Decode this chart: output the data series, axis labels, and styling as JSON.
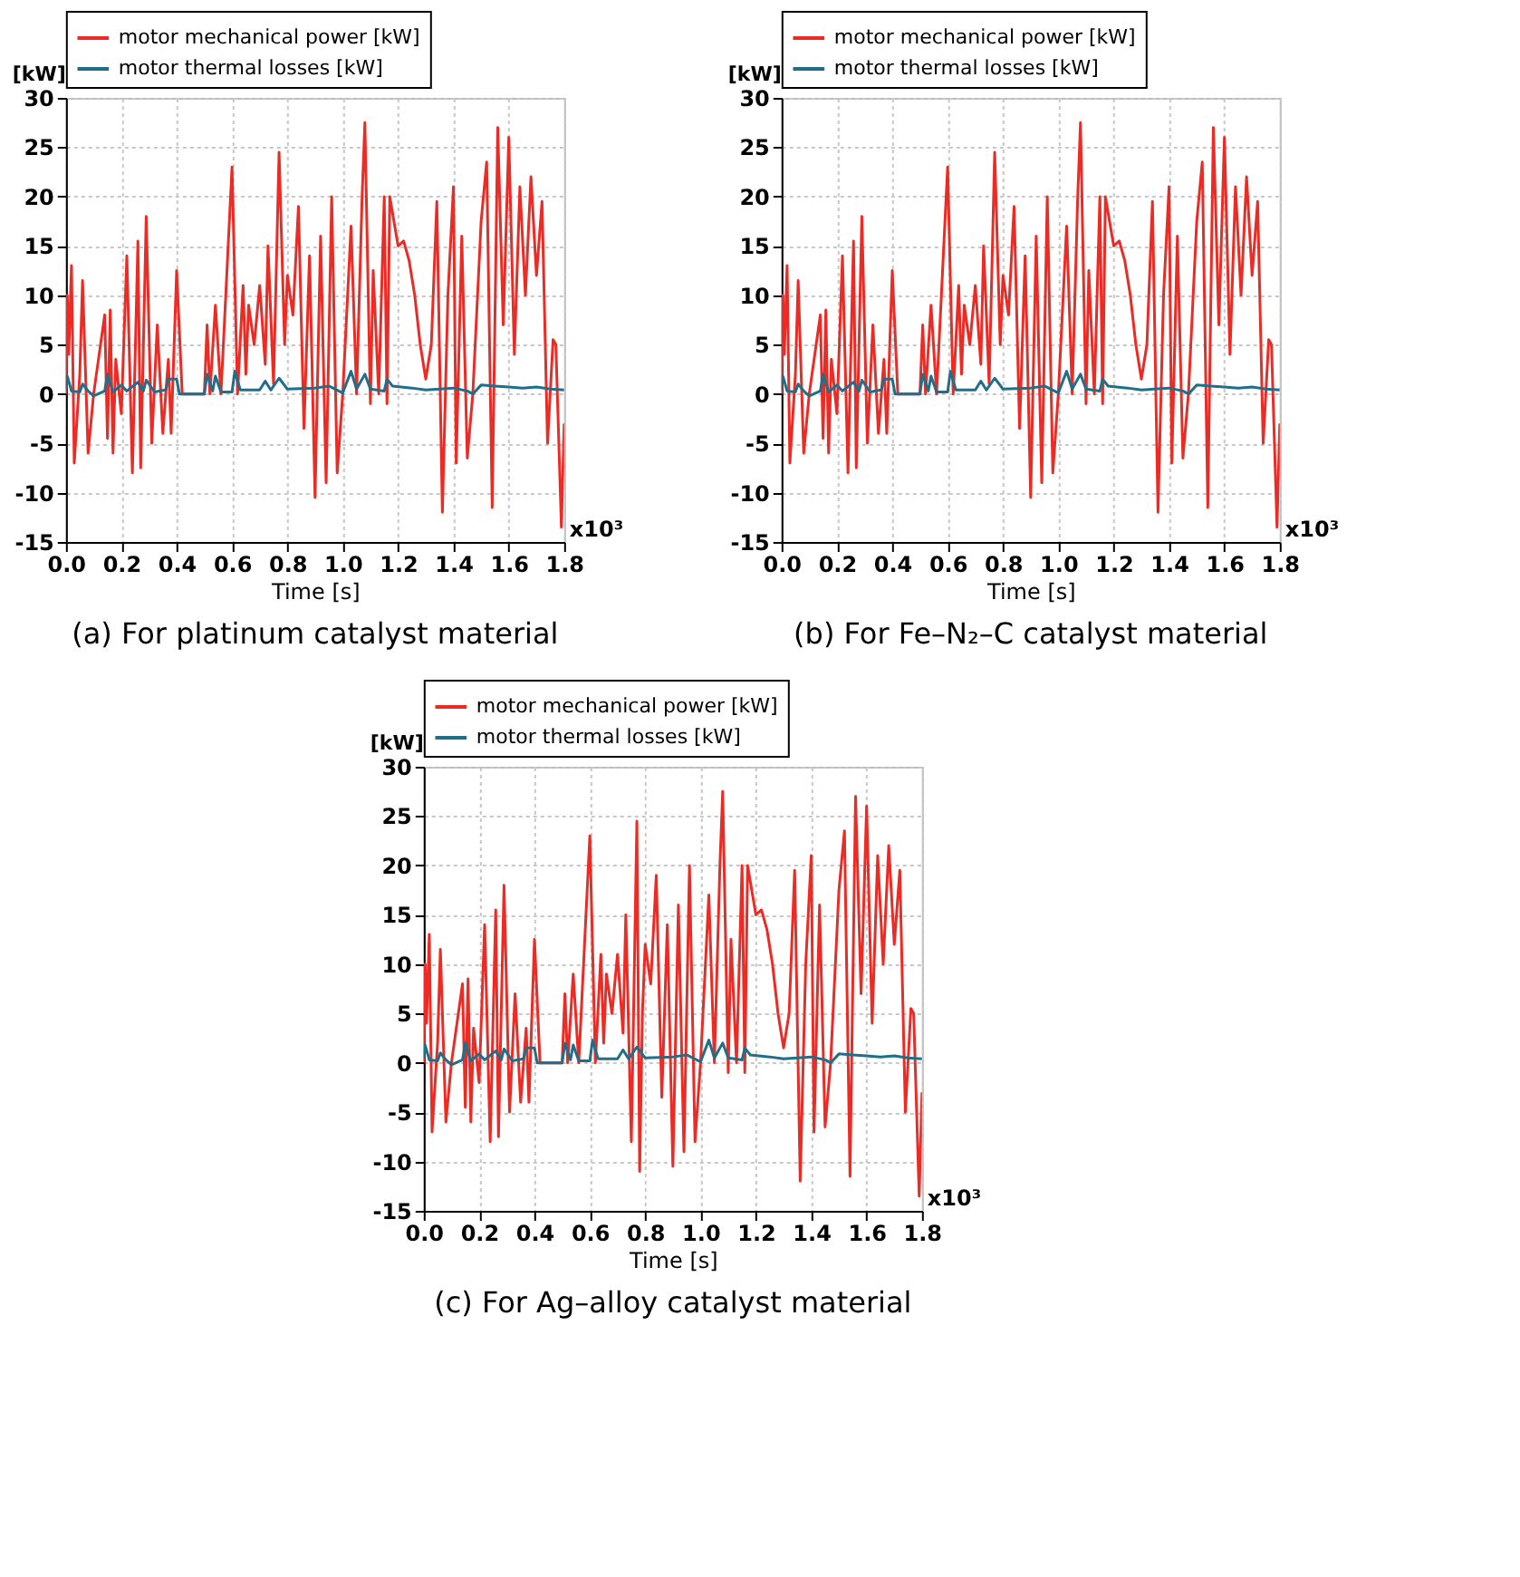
{
  "chart_data": [
    {
      "type": "line",
      "title": "(a) For platinum catalyst material",
      "xlabel": "Time [s]",
      "ylabel": "[kW]",
      "annotations": [
        "x10³"
      ],
      "legend": "top",
      "grid": true,
      "xlim": [
        0,
        1.8
      ],
      "xticks": [
        {
          "value": 0,
          "label": "0.0"
        },
        {
          "value": 0.2,
          "label": "0.2"
        },
        {
          "value": 0.4,
          "label": "0.4"
        },
        {
          "value": 0.6,
          "label": "0.6"
        },
        {
          "value": 0.8,
          "label": "0.8"
        },
        {
          "value": 1,
          "label": "1.0"
        },
        {
          "value": 1.2,
          "label": "1.2"
        },
        {
          "value": 1.4,
          "label": "1.4"
        },
        {
          "value": 1.6,
          "label": "1.6"
        },
        {
          "value": 1.8,
          "label": "1.8"
        }
      ],
      "ylim": [
        -15,
        30
      ],
      "yticks": [
        -15,
        -10,
        -5,
        0,
        5,
        10,
        15,
        20,
        25,
        30
      ],
      "series": [
        {
          "name": "motor mechanical power [kW]",
          "color": "#ee2a24",
          "x": [
            0,
            0.005,
            0.01,
            0.02,
            0.03,
            0.05,
            0.06,
            0.08,
            0.1,
            0.14,
            0.15,
            0.16,
            0.17,
            0.18,
            0.2,
            0.22,
            0.24,
            0.26,
            0.27,
            0.29,
            0.31,
            0.33,
            0.35,
            0.37,
            0.38,
            0.4,
            0.42,
            0.5,
            0.51,
            0.52,
            0.54,
            0.56,
            0.6,
            0.62,
            0.64,
            0.65,
            0.66,
            0.68,
            0.7,
            0.72,
            0.73,
            0.75,
            0.77,
            0.79,
            0.8,
            0.82,
            0.84,
            0.86,
            0.88,
            0.9,
            0.92,
            0.94,
            0.96,
            0.98,
            1,
            1.03,
            1.05,
            1.07,
            1.08,
            1.1,
            1.11,
            1.13,
            1.15,
            1.16,
            1.17,
            1.2,
            1.22,
            1.24,
            1.26,
            1.28,
            1.3,
            1.32,
            1.34,
            1.36,
            1.38,
            1.4,
            1.41,
            1.43,
            1.45,
            1.47,
            1.5,
            1.52,
            1.54,
            1.56,
            1.58,
            1.6,
            1.62,
            1.64,
            1.66,
            1.68,
            1.7,
            1.72,
            1.74,
            1.76,
            1.77,
            1.79,
            1.8
          ],
          "values": [
            0,
            10,
            4,
            13,
            -7,
            2,
            11.5,
            -6,
            0,
            8,
            -4.5,
            8.5,
            -6,
            3.5,
            -2,
            14,
            -8,
            15.5,
            -7.5,
            18,
            -5,
            7,
            -4,
            3.5,
            -4,
            12.5,
            0,
            0,
            7,
            0,
            9,
            0,
            23,
            0,
            11,
            2,
            9,
            5,
            11,
            3,
            15,
            1,
            24.5,
            5,
            12,
            8,
            19,
            -3.5,
            14,
            -10.5,
            16,
            -9,
            20,
            -8,
            0,
            17,
            0,
            20,
            27.5,
            -1,
            12.5,
            0,
            20,
            -1,
            20,
            15,
            15.5,
            13.5,
            10,
            5,
            1.5,
            5,
            19.5,
            -12,
            10,
            21,
            -7,
            16,
            -6.5,
            0,
            17.5,
            23.5,
            -11.5,
            27,
            7,
            26,
            4,
            21,
            10,
            22,
            12,
            19.5,
            -5,
            5.5,
            5,
            -13.5,
            -3
          ]
        },
        {
          "name": "motor thermal losses [kW]",
          "color": "#1f6f8b",
          "x": [
            0,
            0.005,
            0.02,
            0.05,
            0.06,
            0.08,
            0.1,
            0.14,
            0.15,
            0.17,
            0.2,
            0.22,
            0.26,
            0.28,
            0.29,
            0.32,
            0.36,
            0.37,
            0.4,
            0.41,
            0.5,
            0.51,
            0.53,
            0.54,
            0.56,
            0.6,
            0.61,
            0.63,
            0.7,
            0.72,
            0.74,
            0.77,
            0.8,
            0.9,
            0.95,
            1,
            1.03,
            1.05,
            1.08,
            1.1,
            1.15,
            1.16,
            1.18,
            1.25,
            1.3,
            1.4,
            1.45,
            1.47,
            1.5,
            1.55,
            1.6,
            1.65,
            1.7,
            1.75,
            1.8
          ],
          "values": [
            0.5,
            1.8,
            0.3,
            0.2,
            1,
            0.3,
            -0.2,
            0.3,
            2,
            0.2,
            0.9,
            0.3,
            1.2,
            0.3,
            1.4,
            0.2,
            0.4,
            1.5,
            1.5,
            0,
            0,
            2,
            0.3,
            1.8,
            0.2,
            0.2,
            2.3,
            0.4,
            0.4,
            1.3,
            0.4,
            1.6,
            0.5,
            0.6,
            0.8,
            0.1,
            2.3,
            0.5,
            2,
            0.5,
            0.3,
            1.5,
            0.8,
            0.6,
            0.4,
            0.6,
            0.3,
            0,
            0.9,
            0.8,
            0.7,
            0.6,
            0.7,
            0.5,
            0.4
          ]
        }
      ]
    },
    {
      "type": "line",
      "title": "(b) For Fe–N₂–C catalyst material",
      "xlabel": "Time [s]",
      "ylabel": "[kW]",
      "annotations": [
        "x10³"
      ],
      "legend": "top",
      "grid": true,
      "xlim": [
        0,
        1.8
      ],
      "xticks": [
        {
          "value": 0,
          "label": "0.0"
        },
        {
          "value": 0.2,
          "label": "0.2"
        },
        {
          "value": 0.4,
          "label": "0.4"
        },
        {
          "value": 0.6,
          "label": "0.6"
        },
        {
          "value": 0.8,
          "label": "0.8"
        },
        {
          "value": 1,
          "label": "1.0"
        },
        {
          "value": 1.2,
          "label": "1.2"
        },
        {
          "value": 1.4,
          "label": "1.4"
        },
        {
          "value": 1.6,
          "label": "1.6"
        },
        {
          "value": 1.8,
          "label": "1.8"
        }
      ],
      "ylim": [
        -15,
        30
      ],
      "yticks": [
        -15,
        -10,
        -5,
        0,
        5,
        10,
        15,
        20,
        25,
        30
      ],
      "series": [
        {
          "name": "motor mechanical power [kW]",
          "color": "#ee2a24",
          "x": [
            0,
            0.005,
            0.01,
            0.02,
            0.03,
            0.05,
            0.06,
            0.08,
            0.1,
            0.14,
            0.15,
            0.16,
            0.17,
            0.18,
            0.2,
            0.22,
            0.24,
            0.26,
            0.27,
            0.29,
            0.31,
            0.33,
            0.35,
            0.37,
            0.38,
            0.4,
            0.42,
            0.5,
            0.51,
            0.52,
            0.54,
            0.56,
            0.6,
            0.62,
            0.64,
            0.65,
            0.66,
            0.68,
            0.7,
            0.72,
            0.73,
            0.75,
            0.77,
            0.79,
            0.8,
            0.82,
            0.84,
            0.86,
            0.88,
            0.9,
            0.92,
            0.94,
            0.96,
            0.98,
            1,
            1.03,
            1.05,
            1.07,
            1.08,
            1.1,
            1.11,
            1.13,
            1.15,
            1.16,
            1.17,
            1.2,
            1.22,
            1.24,
            1.26,
            1.28,
            1.3,
            1.32,
            1.34,
            1.36,
            1.38,
            1.4,
            1.41,
            1.43,
            1.45,
            1.47,
            1.5,
            1.52,
            1.54,
            1.56,
            1.58,
            1.6,
            1.62,
            1.64,
            1.66,
            1.68,
            1.7,
            1.72,
            1.74,
            1.76,
            1.77,
            1.79,
            1.8
          ],
          "values": [
            0,
            10,
            4,
            13,
            -7,
            2,
            11.5,
            -6,
            0,
            8,
            -4.5,
            8.5,
            -6,
            3.5,
            -2,
            14,
            -8,
            15.5,
            -7.5,
            18,
            -5,
            7,
            -4,
            3.5,
            -4,
            12.5,
            0,
            0,
            7,
            0,
            9,
            0,
            23,
            0,
            11,
            2,
            9,
            5,
            11,
            3,
            15,
            1,
            24.5,
            5,
            12,
            8,
            19,
            -3.5,
            14,
            -10.5,
            16,
            -9,
            20,
            -8,
            0,
            17,
            0,
            20,
            27.5,
            -1,
            12.5,
            0,
            20,
            -1,
            20,
            15,
            15.5,
            13.5,
            10,
            5,
            1.5,
            5,
            19.5,
            -12,
            10,
            21,
            -7,
            16,
            -6.5,
            0,
            17.5,
            23.5,
            -11.5,
            27,
            7,
            26,
            4,
            21,
            10,
            22,
            12,
            19.5,
            -5,
            5.5,
            5,
            -13.5,
            -3
          ]
        },
        {
          "name": "motor thermal losses [kW]",
          "color": "#1f6f8b",
          "x": [
            0,
            0.005,
            0.02,
            0.05,
            0.06,
            0.08,
            0.1,
            0.14,
            0.15,
            0.17,
            0.2,
            0.22,
            0.26,
            0.28,
            0.29,
            0.32,
            0.36,
            0.37,
            0.4,
            0.41,
            0.5,
            0.51,
            0.53,
            0.54,
            0.56,
            0.6,
            0.61,
            0.63,
            0.7,
            0.72,
            0.74,
            0.77,
            0.8,
            0.9,
            0.95,
            1,
            1.03,
            1.05,
            1.08,
            1.1,
            1.15,
            1.16,
            1.18,
            1.25,
            1.3,
            1.4,
            1.45,
            1.47,
            1.5,
            1.55,
            1.6,
            1.65,
            1.7,
            1.75,
            1.8
          ],
          "values": [
            0.5,
            1.8,
            0.3,
            0.2,
            1,
            0.3,
            -0.2,
            0.3,
            2,
            0.2,
            0.9,
            0.3,
            1.2,
            0.3,
            1.4,
            0.2,
            0.4,
            1.5,
            1.5,
            0,
            0,
            2,
            0.3,
            1.8,
            0.2,
            0.2,
            2.3,
            0.4,
            0.4,
            1.3,
            0.4,
            1.6,
            0.5,
            0.6,
            0.8,
            0.1,
            2.3,
            0.5,
            2,
            0.5,
            0.3,
            1.5,
            0.8,
            0.6,
            0.4,
            0.6,
            0.3,
            0,
            0.9,
            0.8,
            0.7,
            0.6,
            0.7,
            0.5,
            0.4
          ]
        }
      ]
    },
    {
      "type": "line",
      "title": "(c) For Ag–alloy catalyst material",
      "xlabel": "Time [s]",
      "ylabel": "[kW]",
      "annotations": [
        "x10³"
      ],
      "legend": "top",
      "grid": true,
      "xlim": [
        0,
        1.8
      ],
      "xticks": [
        {
          "value": 0,
          "label": "0.0"
        },
        {
          "value": 0.2,
          "label": "0.2"
        },
        {
          "value": 0.4,
          "label": "0.4"
        },
        {
          "value": 0.6,
          "label": "0.6"
        },
        {
          "value": 0.8,
          "label": "0.8"
        },
        {
          "value": 1,
          "label": "1.0"
        },
        {
          "value": 1.2,
          "label": "1.2"
        },
        {
          "value": 1.4,
          "label": "1.4"
        },
        {
          "value": 1.6,
          "label": "1.6"
        },
        {
          "value": 1.8,
          "label": "1.8"
        }
      ],
      "ylim": [
        -15,
        30
      ],
      "yticks": [
        -15,
        -10,
        -5,
        0,
        5,
        10,
        15,
        20,
        25,
        30
      ],
      "series": [
        {
          "name": "motor mechanical power [kW]",
          "color": "#ee2a24",
          "x": [
            0,
            0.005,
            0.01,
            0.02,
            0.03,
            0.05,
            0.06,
            0.08,
            0.1,
            0.14,
            0.15,
            0.16,
            0.17,
            0.18,
            0.2,
            0.22,
            0.24,
            0.26,
            0.27,
            0.29,
            0.31,
            0.33,
            0.35,
            0.37,
            0.38,
            0.4,
            0.42,
            0.5,
            0.51,
            0.52,
            0.54,
            0.56,
            0.6,
            0.62,
            0.64,
            0.65,
            0.66,
            0.68,
            0.7,
            0.72,
            0.73,
            0.75,
            0.77,
            0.78,
            0.79,
            0.8,
            0.82,
            0.84,
            0.86,
            0.88,
            0.9,
            0.92,
            0.94,
            0.96,
            0.98,
            1,
            1.03,
            1.05,
            1.07,
            1.08,
            1.1,
            1.11,
            1.13,
            1.15,
            1.16,
            1.17,
            1.2,
            1.22,
            1.24,
            1.26,
            1.28,
            1.3,
            1.32,
            1.34,
            1.36,
            1.38,
            1.4,
            1.41,
            1.43,
            1.45,
            1.47,
            1.5,
            1.52,
            1.54,
            1.56,
            1.58,
            1.6,
            1.62,
            1.64,
            1.66,
            1.68,
            1.7,
            1.72,
            1.74,
            1.76,
            1.77,
            1.79,
            1.8
          ],
          "values": [
            0,
            10,
            4,
            13,
            -7,
            2,
            11.5,
            -6,
            0,
            8,
            -4.5,
            8.5,
            -6,
            3.5,
            -2,
            14,
            -8,
            15.5,
            -7.5,
            18,
            -5,
            7,
            -4,
            3.5,
            -4,
            12.5,
            0,
            0,
            7,
            0,
            9,
            0,
            23,
            0,
            11,
            2,
            9,
            5,
            11,
            3,
            15,
            -8,
            24.5,
            -11,
            5,
            12,
            8,
            19,
            -3.5,
            14,
            -10.5,
            16,
            -9,
            20,
            -8,
            0,
            17,
            0,
            20,
            27.5,
            -1,
            12.5,
            0,
            20,
            -1,
            20,
            15,
            15.5,
            13.5,
            10,
            5,
            1.5,
            5,
            19.5,
            -12,
            10,
            21,
            -7,
            16,
            -6.5,
            0,
            17.5,
            23.5,
            -11.5,
            27,
            7,
            26,
            4,
            21,
            10,
            22,
            12,
            19.5,
            -5,
            5.5,
            5,
            -13.5,
            -3
          ]
        },
        {
          "name": "motor thermal losses [kW]",
          "color": "#1f6f8b",
          "x": [
            0,
            0.005,
            0.02,
            0.05,
            0.06,
            0.08,
            0.1,
            0.14,
            0.15,
            0.17,
            0.2,
            0.22,
            0.26,
            0.28,
            0.29,
            0.32,
            0.36,
            0.37,
            0.4,
            0.41,
            0.5,
            0.51,
            0.53,
            0.54,
            0.56,
            0.6,
            0.61,
            0.63,
            0.7,
            0.72,
            0.74,
            0.77,
            0.8,
            0.9,
            0.95,
            1,
            1.03,
            1.05,
            1.08,
            1.1,
            1.15,
            1.16,
            1.18,
            1.25,
            1.3,
            1.4,
            1.45,
            1.47,
            1.5,
            1.55,
            1.6,
            1.65,
            1.7,
            1.75,
            1.8
          ],
          "values": [
            0.5,
            1.8,
            0.3,
            0.2,
            1,
            0.3,
            -0.2,
            0.3,
            2,
            0.2,
            0.9,
            0.3,
            1.2,
            0.3,
            1.4,
            0.2,
            0.4,
            1.5,
            1.5,
            0,
            0,
            2,
            0.3,
            1.8,
            0.2,
            0.2,
            2.3,
            0.4,
            0.4,
            1.3,
            0.4,
            1.6,
            0.5,
            0.6,
            0.8,
            0.1,
            2.3,
            0.5,
            2,
            0.5,
            0.3,
            1.5,
            0.8,
            0.6,
            0.4,
            0.6,
            0.3,
            0,
            0.9,
            0.8,
            0.7,
            0.6,
            0.7,
            0.5,
            0.4
          ]
        }
      ]
    }
  ]
}
